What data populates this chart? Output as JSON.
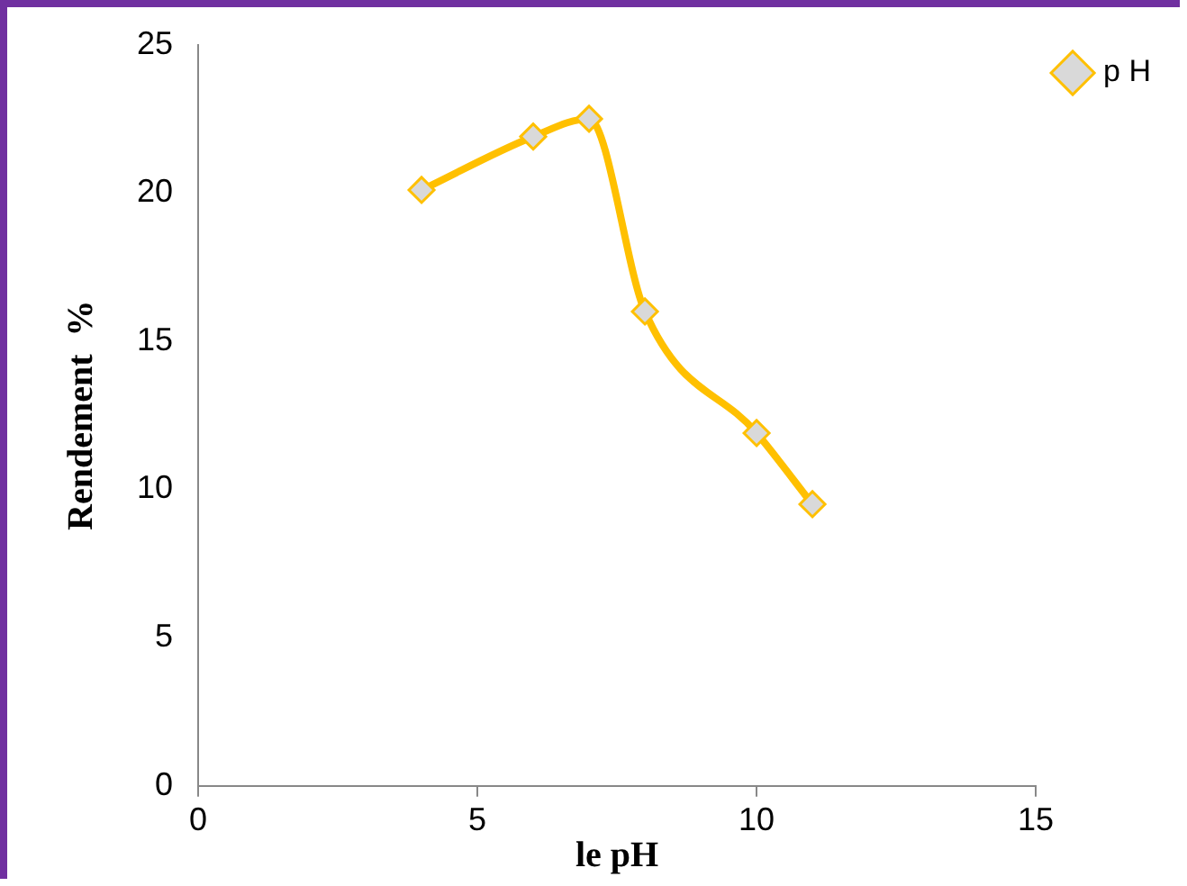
{
  "chart_data": {
    "type": "line",
    "xlabel": "le pH",
    "ylabel": "Rendement  %",
    "x": [
      4,
      6,
      7,
      8,
      10,
      11
    ],
    "series": [
      {
        "name": "p H",
        "color": "#ffc000",
        "values": [
          20.1,
          21.9,
          22.5,
          16,
          11.9,
          9.5
        ]
      }
    ],
    "xlim": [
      0,
      15
    ],
    "xticks": [
      0,
      5,
      10,
      15
    ],
    "ylim": [
      0,
      25
    ],
    "yticks": [
      0,
      5,
      10,
      15,
      20,
      25
    ],
    "grid": false,
    "legend": "top right",
    "marker": "diamond",
    "line_style": "solid"
  }
}
